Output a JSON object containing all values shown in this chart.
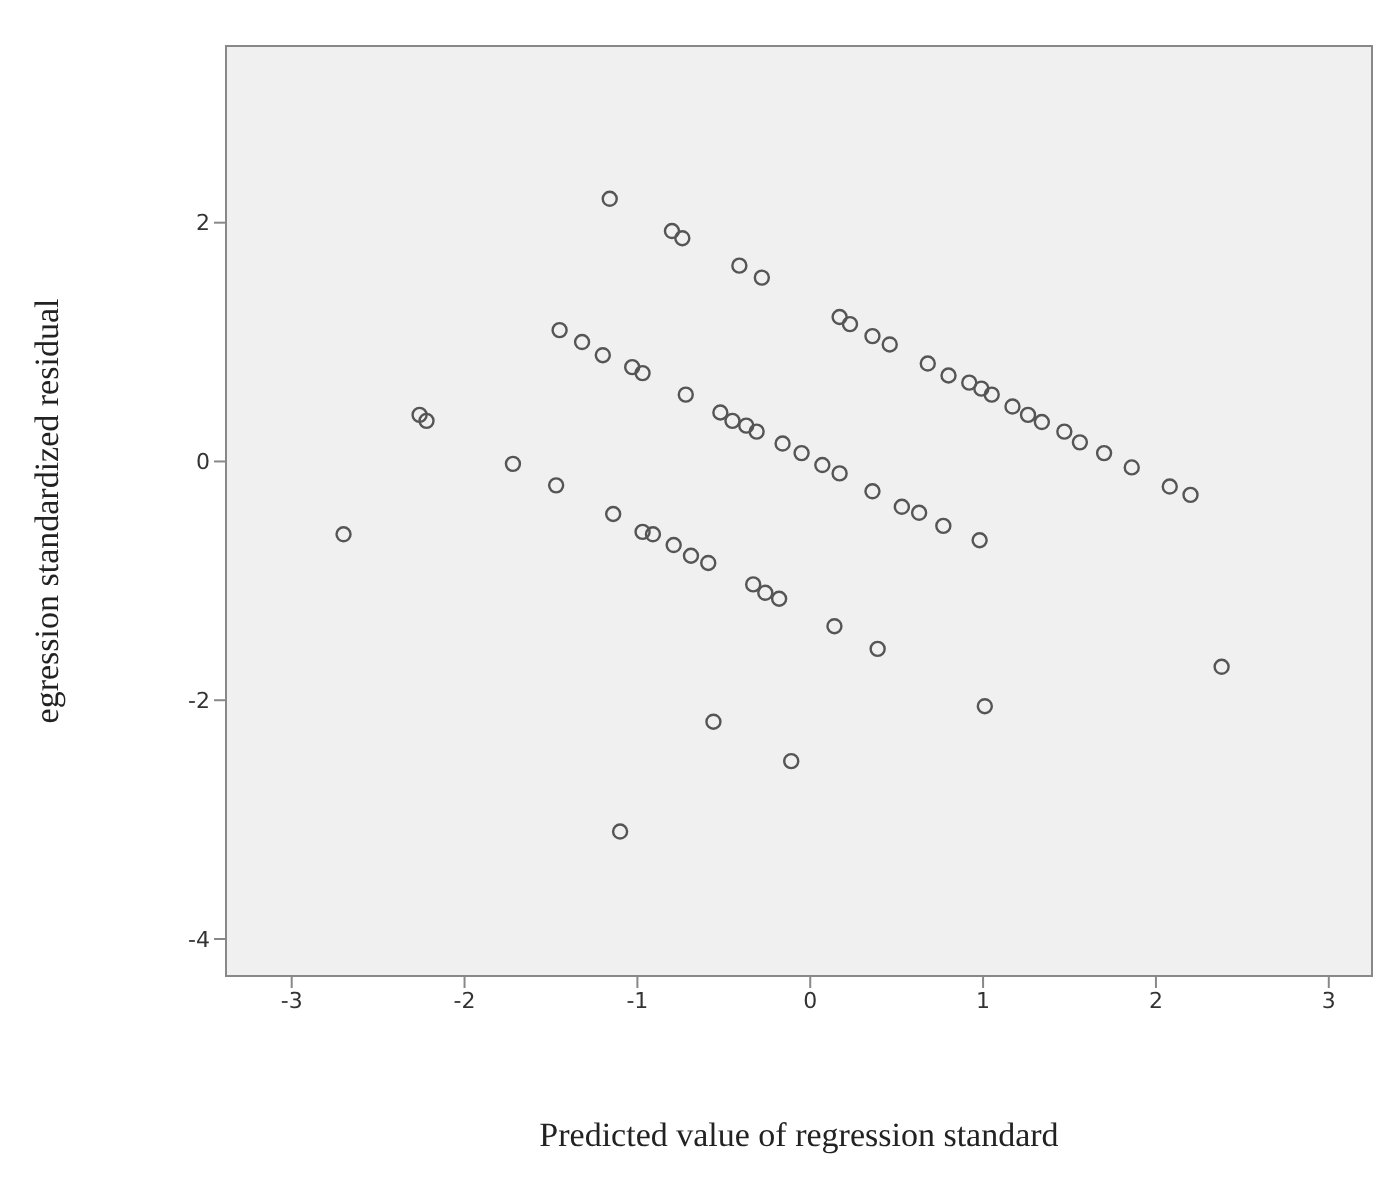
{
  "chart_data": {
    "type": "scatter",
    "xlabel": "Predicted value of regression standard",
    "ylabel": "egression standardized residual",
    "xlim": [
      -3.38,
      3.25
    ],
    "ylim": [
      -4.31,
      3.48
    ],
    "xticks": [
      -3,
      -2,
      -1,
      0,
      1,
      2,
      3
    ],
    "yticks": [
      -4,
      -2,
      0,
      2
    ],
    "legend": false,
    "marker": "circle",
    "series": [
      {
        "color": "#555555",
        "x": [
          -1.16,
          -0.8,
          -0.74,
          -0.41,
          -0.28,
          0.17,
          0.23,
          0.36,
          0.46,
          0.68,
          0.8,
          0.92,
          0.99,
          1.05,
          1.17,
          1.26,
          1.34,
          1.47,
          1.56,
          1.7,
          1.86,
          2.08,
          2.2,
          -1.45,
          -1.32,
          -1.2,
          -1.03,
          -0.97,
          -0.72,
          -0.52,
          -0.45,
          -0.37,
          -0.31,
          -0.16,
          -0.05,
          0.07,
          0.17,
          0.36,
          0.53,
          0.63,
          0.77,
          0.98,
          -2.26,
          -2.22,
          -1.72,
          -1.47,
          -1.14,
          -0.97,
          -0.91,
          -0.79,
          -0.69,
          -0.59,
          -0.33,
          -0.26,
          -0.18,
          0.14,
          0.39,
          -2.7,
          2.38,
          1.01,
          -0.56,
          -0.11,
          -1.1
        ],
        "values": [
          2.2,
          1.93,
          1.87,
          1.64,
          1.54,
          1.21,
          1.15,
          1.05,
          0.98,
          0.82,
          0.72,
          0.66,
          0.61,
          0.56,
          0.46,
          0.39,
          0.33,
          0.25,
          0.16,
          0.07,
          -0.05,
          -0.21,
          -0.28,
          1.1,
          1.0,
          0.89,
          0.79,
          0.74,
          0.56,
          0.41,
          0.34,
          0.3,
          0.25,
          0.15,
          0.07,
          -0.03,
          -0.1,
          -0.25,
          -0.38,
          -0.43,
          -0.54,
          -0.66,
          0.39,
          0.34,
          -0.02,
          -0.2,
          -0.44,
          -0.59,
          -0.61,
          -0.7,
          -0.79,
          -0.85,
          -1.03,
          -1.1,
          -1.15,
          -1.38,
          -1.57,
          -0.61,
          -1.72,
          -2.05,
          -2.18,
          -2.51,
          -3.1
        ]
      }
    ]
  }
}
